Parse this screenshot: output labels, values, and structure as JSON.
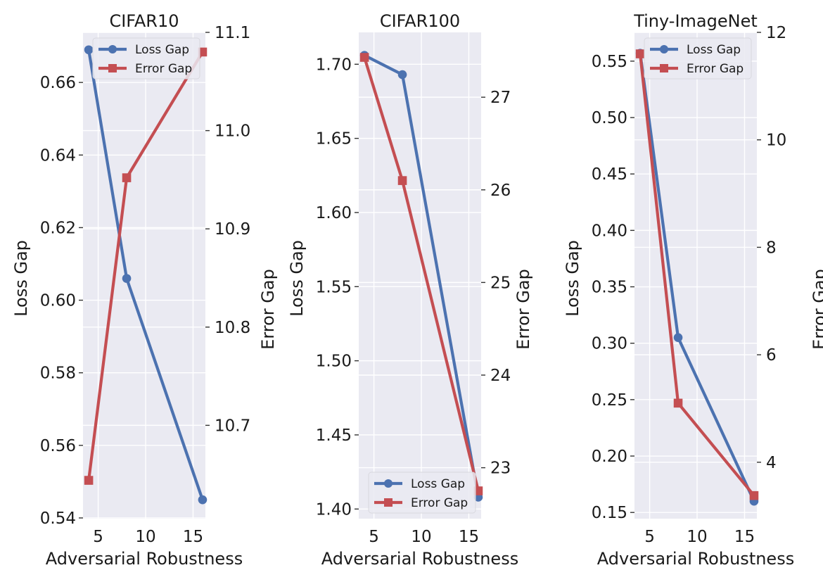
{
  "chart_data": [
    {
      "type": "line",
      "title": "CIFAR10",
      "xlabel": "Adversarial Robustness",
      "ylabel": "Loss Gap",
      "y2label": "Error Gap",
      "x": [
        4,
        8,
        16
      ],
      "xticks": [
        5,
        10,
        15
      ],
      "xlim": [
        3.4,
        16.3
      ],
      "ylim": [
        0.5398,
        0.6738
      ],
      "yticks": [
        0.54,
        0.56,
        0.58,
        0.6,
        0.62,
        0.64,
        0.66
      ],
      "ytick_labels": [
        "0.54",
        "0.56",
        "0.58",
        "0.60",
        "0.62",
        "0.64",
        "0.66"
      ],
      "y2lim": [
        10.605,
        11.1
      ],
      "y2ticks": [
        10.7,
        10.8,
        10.9,
        11.0,
        11.1
      ],
      "y2tick_labels": [
        "10.7",
        "10.8",
        "10.9",
        "11.0",
        "11.1"
      ],
      "legend_position": "top-right",
      "series": [
        {
          "name": "Loss Gap",
          "axis": "left",
          "marker": "circle",
          "color": "#4C72B0",
          "values": [
            0.669,
            0.606,
            0.545
          ]
        },
        {
          "name": "Error Gap",
          "axis": "right",
          "marker": "square",
          "color": "#C44E52",
          "values": [
            10.644,
            10.952,
            11.08
          ]
        }
      ]
    },
    {
      "type": "line",
      "title": "CIFAR100",
      "xlabel": "Adversarial Robustness",
      "ylabel": "Loss Gap",
      "y2label": "Error Gap",
      "x": [
        4,
        8,
        16
      ],
      "xticks": [
        5,
        10,
        15
      ],
      "xlim": [
        3.4,
        16.3
      ],
      "ylim": [
        1.3935,
        1.7215
      ],
      "yticks": [
        1.4,
        1.45,
        1.5,
        1.55,
        1.6,
        1.65,
        1.7
      ],
      "ytick_labels": [
        "1.40",
        "1.45",
        "1.50",
        "1.55",
        "1.60",
        "1.65",
        "1.70"
      ],
      "y2lim": [
        22.45,
        27.7
      ],
      "y2ticks": [
        23,
        24,
        25,
        26,
        27
      ],
      "y2tick_labels": [
        "23",
        "24",
        "25",
        "26",
        "27"
      ],
      "legend_position": "bottom-right",
      "series": [
        {
          "name": "Loss Gap",
          "axis": "left",
          "marker": "circle",
          "color": "#4C72B0",
          "values": [
            1.706,
            1.693,
            1.408
          ]
        },
        {
          "name": "Error Gap",
          "axis": "right",
          "marker": "square",
          "color": "#C44E52",
          "values": [
            27.43,
            26.1,
            22.75
          ]
        }
      ]
    },
    {
      "type": "line",
      "title": "Tiny-ImageNet",
      "xlabel": "Adversarial Robustness",
      "ylabel": "Loss Gap",
      "y2label": "Error Gap",
      "x": [
        4,
        8,
        16
      ],
      "xticks": [
        5,
        10,
        15
      ],
      "xlim": [
        3.4,
        16.3
      ],
      "ylim": [
        0.1445,
        0.5755
      ],
      "yticks": [
        0.15,
        0.2,
        0.25,
        0.3,
        0.35,
        0.4,
        0.45,
        0.5,
        0.55
      ],
      "ytick_labels": [
        "0.15",
        "0.20",
        "0.25",
        "0.30",
        "0.35",
        "0.40",
        "0.45",
        "0.50",
        "0.55"
      ],
      "y2lim": [
        2.95,
        12.0
      ],
      "y2ticks": [
        4,
        6,
        8,
        10,
        12
      ],
      "y2tick_labels": [
        "4",
        "6",
        "8",
        "10",
        "12"
      ],
      "legend_position": "top-right",
      "series": [
        {
          "name": "Loss Gap",
          "axis": "left",
          "marker": "circle",
          "color": "#4C72B0",
          "values": [
            0.557,
            0.305,
            0.16
          ]
        },
        {
          "name": "Error Gap",
          "axis": "right",
          "marker": "square",
          "color": "#C44E52",
          "values": [
            11.6,
            5.1,
            3.38
          ]
        }
      ]
    }
  ]
}
